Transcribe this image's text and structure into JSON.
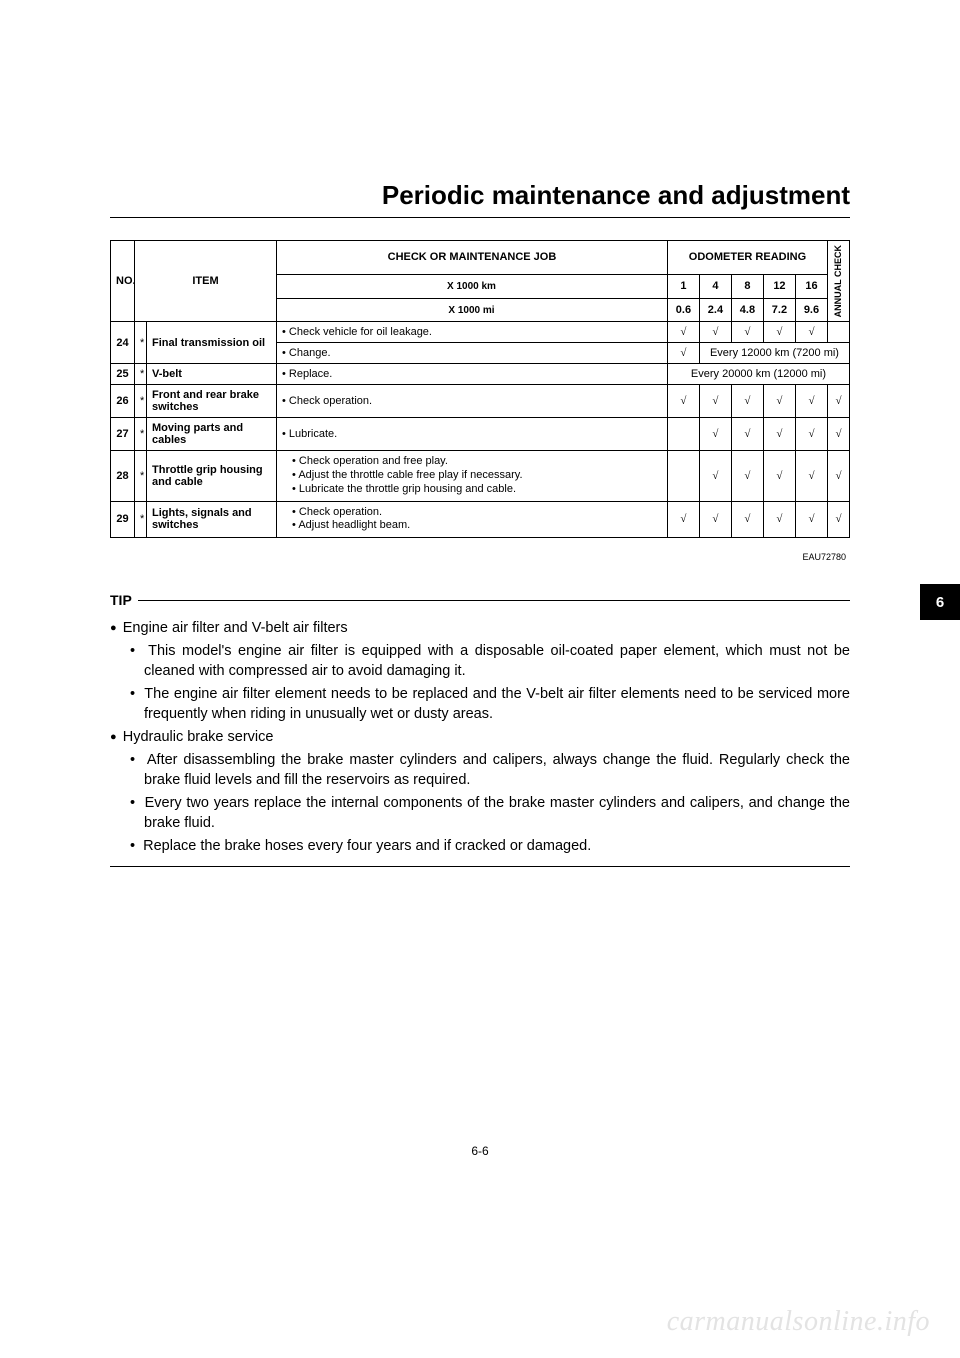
{
  "header": {
    "title": "Periodic maintenance and adjustment"
  },
  "table": {
    "head": {
      "no": "NO.",
      "item": "ITEM",
      "check": "CHECK OR MAINTENANCE JOB",
      "odometer": "ODOMETER READING",
      "annual": "ANNUAL CHECK",
      "x1000km": "X 1000 km",
      "x1000mi": "X 1000 mi",
      "km": [
        "1",
        "4",
        "8",
        "12",
        "16"
      ],
      "mi": [
        "0.6",
        "2.4",
        "4.8",
        "7.2",
        "9.6"
      ]
    },
    "rows": [
      {
        "no": "24",
        "star": "*",
        "item": "Final transmission oil",
        "sub": [
          {
            "job": "• Check vehicle for oil leakage.",
            "marks": [
              "√",
              "√",
              "√",
              "√",
              "√",
              ""
            ],
            "merge": null
          },
          {
            "job": "• Change.",
            "marks": [
              "√"
            ],
            "merge": "Every 12000 km (7200 mi)"
          }
        ]
      },
      {
        "no": "25",
        "star": "*",
        "item": "V-belt",
        "sub": [
          {
            "job": "• Replace.",
            "marks": [],
            "merge_all": "Every 20000 km (12000 mi)"
          }
        ]
      },
      {
        "no": "26",
        "star": "*",
        "item": "Front and rear brake switches",
        "sub": [
          {
            "job": "• Check operation.",
            "marks": [
              "√",
              "√",
              "√",
              "√",
              "√",
              "√"
            ]
          }
        ]
      },
      {
        "no": "27",
        "star": "*",
        "item": "Moving parts and cables",
        "sub": [
          {
            "job": "• Lubricate.",
            "marks": [
              "",
              "√",
              "√",
              "√",
              "√",
              "√"
            ]
          }
        ]
      },
      {
        "no": "28",
        "star": "*",
        "item": "Throttle grip housing and cable",
        "sub": [
          {
            "job_multi": [
              "Check operation and free play.",
              "Adjust the throttle cable free play if necessary.",
              "Lubricate the throttle grip housing and cable."
            ],
            "marks": [
              "",
              "√",
              "√",
              "√",
              "√",
              "√"
            ]
          }
        ]
      },
      {
        "no": "29",
        "star": "*",
        "item": "Lights, signals and switches",
        "sub": [
          {
            "job_multi": [
              "Check operation.",
              "Adjust headlight beam."
            ],
            "marks": [
              "√",
              "√",
              "√",
              "√",
              "√",
              "√"
            ]
          }
        ]
      }
    ]
  },
  "ref_code": "EAU72780",
  "tip": {
    "label": "TIP",
    "items": [
      {
        "type": "top",
        "text": "Engine air filter and V-belt air filters"
      },
      {
        "type": "sub",
        "text": "This model's engine air filter is equipped with a disposable oil-coated paper element, which must not be cleaned with compressed air to avoid damaging it."
      },
      {
        "type": "sub",
        "text": "The engine air filter element needs to be replaced and the V-belt air filter elements need to be serviced more frequently when riding in unusually wet or dusty areas."
      },
      {
        "type": "top",
        "text": "Hydraulic brake service"
      },
      {
        "type": "sub",
        "text": "After disassembling the brake master cylinders and calipers, always change the fluid. Regularly check the brake fluid levels and fill the reservoirs as required."
      },
      {
        "type": "sub",
        "text": "Every two years replace the internal components of the brake master cylinders and calipers, and change the brake fluid."
      },
      {
        "type": "sub",
        "text": "Replace the brake hoses every four years and if cracked or damaged."
      }
    ]
  },
  "side_tab": "6",
  "page_number": "6-6",
  "watermark": "carmanualsonline.info"
}
